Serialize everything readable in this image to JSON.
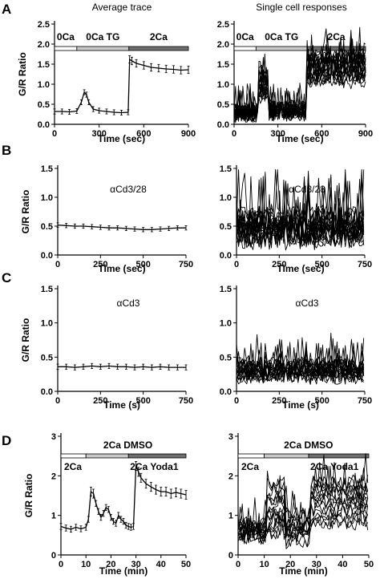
{
  "figure": {
    "column_titles": [
      "Average trace",
      "Single cell responses"
    ],
    "panel_letters": [
      "A",
      "B",
      "C",
      "D"
    ]
  },
  "chart_data": [
    {
      "id": "A-average",
      "type": "line",
      "panel": "A",
      "column": "left",
      "xlabel": "Time (sec)",
      "ylabel": "G/R Ratio",
      "xlim": [
        0,
        900
      ],
      "ylim": [
        0,
        2.5
      ],
      "xticks": [
        0,
        300,
        600,
        900
      ],
      "yticks": [
        0,
        0.5,
        1,
        1.5,
        2,
        2.5
      ],
      "condition_bar": [
        {
          "label": "0Ca",
          "x0": 0,
          "x1": 150,
          "shade": "#ffffff"
        },
        {
          "label": "0Ca TG",
          "x0": 150,
          "x1": 500,
          "shade": "#c8c8c8"
        },
        {
          "label": "2Ca",
          "x0": 500,
          "x1": 900,
          "shade": "#6e6e6e"
        }
      ],
      "series": [
        {
          "error_bars": true,
          "x": [
            0,
            50,
            100,
            150,
            180,
            200,
            215,
            230,
            260,
            300,
            350,
            400,
            450,
            495,
            505,
            520,
            550,
            600,
            650,
            700,
            750,
            800,
            850,
            900
          ],
          "y": [
            0.32,
            0.32,
            0.31,
            0.33,
            0.55,
            0.8,
            0.74,
            0.55,
            0.38,
            0.34,
            0.32,
            0.3,
            0.29,
            0.3,
            1.62,
            1.58,
            1.52,
            1.47,
            1.42,
            1.4,
            1.38,
            1.37,
            1.35,
            1.36
          ]
        }
      ]
    },
    {
      "id": "A-single",
      "type": "line",
      "panel": "A",
      "column": "right",
      "xlabel": "Time (sec)",
      "ylabel": "",
      "xlim": [
        0,
        900
      ],
      "ylim": [
        0,
        2.5
      ],
      "xticks": [
        0,
        300,
        600,
        900
      ],
      "yticks": [
        0,
        0.5,
        1,
        1.5,
        2,
        2.5
      ],
      "condition_bar": [
        {
          "label": "0Ca",
          "x0": 0,
          "x1": 150,
          "shade": "#ffffff"
        },
        {
          "label": "0Ca TG",
          "x0": 150,
          "x1": 500,
          "shade": "#c8c8c8"
        },
        {
          "label": "2Ca",
          "x0": 500,
          "x1": 900,
          "shade": "#6e6e6e"
        }
      ],
      "traces": {
        "count": 20,
        "x_step": 10,
        "noise": 0.18,
        "phases": [
          {
            "x0": 0,
            "x1": 170,
            "mean": 0.3,
            "spread": 0.1
          },
          {
            "x0": 170,
            "x1": 240,
            "mean": 1.0,
            "spread": 0.35
          },
          {
            "x0": 240,
            "x1": 500,
            "mean": 0.35,
            "spread": 0.1
          },
          {
            "x0": 500,
            "x1": 900,
            "mean": 1.4,
            "spread": 0.35
          }
        ]
      }
    },
    {
      "id": "B-average",
      "type": "line",
      "panel": "B",
      "column": "left",
      "xlabel": "Time (sec)",
      "ylabel": "G/R Ratio",
      "annotation": "αCd3/28",
      "xlim": [
        0,
        750
      ],
      "ylim": [
        0,
        1.5
      ],
      "xticks": [
        0,
        250,
        500,
        750
      ],
      "yticks": [
        0,
        0.5,
        1.0,
        1.5
      ],
      "series": [
        {
          "error_bars": true,
          "x": [
            0,
            50,
            100,
            150,
            200,
            250,
            300,
            350,
            400,
            450,
            500,
            550,
            600,
            650,
            700,
            750
          ],
          "y": [
            0.52,
            0.51,
            0.5,
            0.5,
            0.49,
            0.48,
            0.47,
            0.47,
            0.46,
            0.45,
            0.44,
            0.44,
            0.45,
            0.46,
            0.47,
            0.47
          ]
        }
      ]
    },
    {
      "id": "B-single",
      "type": "line",
      "panel": "B",
      "column": "right",
      "xlabel": "Time (sec)",
      "ylabel": "",
      "annotation": "αCd3/28",
      "xlim": [
        0,
        750
      ],
      "ylim": [
        0,
        1.5
      ],
      "xticks": [
        0,
        250,
        500,
        750
      ],
      "yticks": [
        0,
        0.5,
        1.0,
        1.5
      ],
      "traces": {
        "count": 18,
        "x_step": 12,
        "noise": 0.25,
        "phases": [
          {
            "x0": 0,
            "x1": 750,
            "mean": 0.45,
            "spread": 0.2
          }
        ]
      }
    },
    {
      "id": "C-average",
      "type": "line",
      "panel": "C",
      "column": "left",
      "xlabel": "Time (s)",
      "ylabel": "G/R Ratio",
      "annotation": "αCd3",
      "xlim": [
        0,
        750
      ],
      "ylim": [
        0,
        1.5
      ],
      "xticks": [
        0,
        250,
        500,
        750
      ],
      "yticks": [
        0,
        0.5,
        1.0,
        1.5
      ],
      "series": [
        {
          "error_bars": true,
          "x": [
            0,
            50,
            100,
            150,
            200,
            250,
            300,
            350,
            400,
            450,
            500,
            550,
            600,
            650,
            700,
            750
          ],
          "y": [
            0.36,
            0.36,
            0.35,
            0.36,
            0.37,
            0.36,
            0.37,
            0.36,
            0.36,
            0.35,
            0.36,
            0.35,
            0.36,
            0.35,
            0.35,
            0.35
          ]
        }
      ]
    },
    {
      "id": "C-single",
      "type": "line",
      "panel": "C",
      "column": "right",
      "xlabel": "Time (s)",
      "ylabel": "",
      "annotation": "αCd3",
      "xlim": [
        0,
        750
      ],
      "ylim": [
        0,
        1.5
      ],
      "xticks": [
        0,
        250,
        500,
        750
      ],
      "yticks": [
        0,
        0.5,
        1.0,
        1.5
      ],
      "traces": {
        "count": 18,
        "x_step": 12,
        "noise": 0.12,
        "phases": [
          {
            "x0": 0,
            "x1": 750,
            "mean": 0.32,
            "spread": 0.1
          }
        ]
      }
    },
    {
      "id": "D-average",
      "type": "line",
      "panel": "D",
      "column": "left",
      "xlabel": "Time (min)",
      "ylabel": "G/R Ratio",
      "xlim": [
        0,
        50
      ],
      "ylim": [
        0,
        3.0
      ],
      "xticks": [
        0,
        10,
        20,
        30,
        40,
        50
      ],
      "yticks": [
        0,
        1.0,
        2.0,
        3.0
      ],
      "condition_bar": [
        {
          "label": "2Ca",
          "x0": 0,
          "x1": 10,
          "shade": "#ffffff"
        },
        {
          "label": "2Ca DMSO",
          "x0": 10,
          "x1": 27,
          "shade": "#c8c8c8"
        },
        {
          "label": "2Ca Yoda1",
          "x0": 27,
          "x1": 50,
          "shade": "#6e6e6e"
        }
      ],
      "series": [
        {
          "error_bars": true,
          "x": [
            0,
            2,
            4,
            6,
            8,
            10,
            11,
            12,
            13,
            14,
            15,
            16,
            17,
            18,
            19,
            20,
            21,
            22,
            23,
            24,
            25,
            26,
            27,
            28,
            29,
            30,
            31,
            32,
            34,
            36,
            38,
            40,
            42,
            44,
            46,
            48,
            50
          ],
          "y": [
            0.72,
            0.68,
            0.65,
            0.7,
            0.66,
            0.7,
            0.9,
            1.6,
            1.55,
            1.3,
            1.1,
            0.95,
            1.05,
            1.2,
            1.15,
            0.95,
            0.85,
            0.8,
            1.0,
            0.9,
            0.85,
            0.75,
            0.72,
            0.7,
            0.72,
            2.25,
            2.1,
            1.95,
            1.8,
            1.72,
            1.65,
            1.6,
            1.6,
            1.55,
            1.58,
            1.55,
            1.52
          ]
        }
      ]
    },
    {
      "id": "D-single",
      "type": "line",
      "panel": "D",
      "column": "right",
      "xlabel": "Time (min)",
      "ylabel": "",
      "xlim": [
        0,
        50
      ],
      "ylim": [
        0,
        3.0
      ],
      "xticks": [
        0,
        10,
        20,
        30,
        40,
        50
      ],
      "yticks": [
        0,
        1.0,
        2.0,
        3.0
      ],
      "condition_bar": [
        {
          "label": "2Ca",
          "x0": 0,
          "x1": 10,
          "shade": "#ffffff"
        },
        {
          "label": "2Ca DMSO",
          "x0": 10,
          "x1": 27,
          "shade": "#c8c8c8"
        },
        {
          "label": "2Ca Yoda1",
          "x0": 27,
          "x1": 50,
          "shade": "#6e6e6e"
        }
      ],
      "traces": {
        "count": 16,
        "x_step": 0.8,
        "noise": 0.2,
        "phases": [
          {
            "x0": 0,
            "x1": 11,
            "mean": 0.6,
            "spread": 0.2
          },
          {
            "x0": 11,
            "x1": 18,
            "mean": 1.2,
            "spread": 0.7
          },
          {
            "x0": 18,
            "x1": 28,
            "mean": 0.7,
            "spread": 0.35
          },
          {
            "x0": 28,
            "x1": 50,
            "mean": 1.3,
            "spread": 0.6
          }
        ]
      }
    }
  ]
}
